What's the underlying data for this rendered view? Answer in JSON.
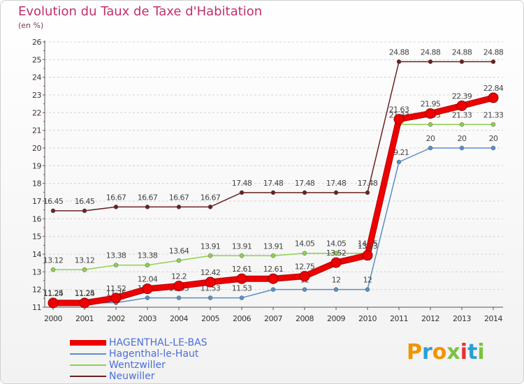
{
  "header": {
    "title": "Evolution du Taux de Taxe d'Habitation",
    "unit": "(en %)"
  },
  "chart_data": {
    "type": "line",
    "title": "Evolution du Taux de Taxe d'Habitation",
    "ylabel": "(en %)",
    "xlabel": "",
    "ylim": [
      11,
      26
    ],
    "yticks": [
      11,
      12,
      13,
      14,
      15,
      16,
      17,
      18,
      19,
      20,
      21,
      22,
      23,
      24,
      25,
      26
    ],
    "x": [
      "2000",
      "2001",
      "2002",
      "2003",
      "2004",
      "2005",
      "2006",
      "2007",
      "2008",
      "2009",
      "2010",
      "2011",
      "2012",
      "2013",
      "2014"
    ],
    "grid": "horizontal",
    "legend_position": "bottom-left",
    "series": [
      {
        "name": "Neuwiller",
        "color": "#6b2121",
        "values": [
          16.45,
          16.45,
          16.67,
          16.67,
          16.67,
          16.67,
          17.48,
          17.48,
          17.48,
          17.48,
          17.48,
          24.88,
          24.88,
          24.88,
          24.88
        ],
        "labels": [
          "16.45",
          "16.45",
          "16.67",
          "16.67",
          "16.67",
          "16.67",
          "17.48",
          "17.48",
          "17.48",
          "17.48",
          "17.48",
          "24.88",
          "24.88",
          "24.88",
          "24.88"
        ]
      },
      {
        "name": "Wentzwiller",
        "color": "#8fd14f",
        "values": [
          13.12,
          13.12,
          13.38,
          13.38,
          13.64,
          13.91,
          13.91,
          13.91,
          14.05,
          14.05,
          14.05,
          21.33,
          21.33,
          21.33,
          21.33
        ],
        "labels": [
          "13.12",
          "13.12",
          "13.38",
          "13.38",
          "13.64",
          "13.91",
          "13.91",
          "13.91",
          "14.05",
          "14.05",
          "14.05",
          "21.33",
          "21.33",
          "21.33",
          "21.33"
        ]
      },
      {
        "name": "Hagenthal-le-Haut",
        "color": "#5b8fc4",
        "values": [
          11.25,
          11.25,
          11.25,
          11.53,
          11.53,
          11.53,
          11.53,
          12,
          12,
          12,
          12,
          19.21,
          20,
          20,
          20
        ],
        "labels": [
          "11.25",
          "11.25",
          "11.25",
          "11.53",
          "11.53",
          "11.53",
          "11.53",
          "12",
          "12",
          "12",
          "12",
          "19.21",
          "20",
          "20",
          "20"
        ]
      },
      {
        "name": "HAGENTHAL-LE-BAS",
        "color": "#ee0000",
        "values": [
          11.24,
          11.24,
          11.52,
          12.04,
          12.2,
          12.42,
          12.61,
          12.61,
          12.75,
          13.52,
          13.93,
          21.63,
          21.95,
          22.39,
          22.84
        ],
        "labels": [
          "11.24",
          "11.24",
          "11.52",
          "12.04",
          "12.2",
          "12.42",
          "12.61",
          "12.61",
          "12.75",
          "13.52",
          "13.93",
          "21.63",
          "21.95",
          "22.39",
          "22.84"
        ]
      }
    ]
  },
  "legend": {
    "items": [
      {
        "label": "HAGENTHAL-LE-BAS",
        "color": "#ee0000"
      },
      {
        "label": "Hagenthal-le-Haut",
        "color": "#5b8fc4"
      },
      {
        "label": "Wentzwiller",
        "color": "#8fd14f"
      },
      {
        "label": "Neuwiller",
        "color": "#6b2121"
      }
    ]
  },
  "logo": {
    "text": "Proxiti",
    "colors": [
      "#f29400",
      "#2a9fd6",
      "#f29400",
      "#7cc242",
      "#e4332e",
      "#2a9fd6",
      "#7cc242"
    ]
  }
}
